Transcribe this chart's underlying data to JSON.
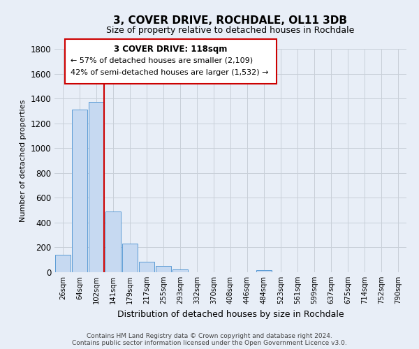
{
  "title": "3, COVER DRIVE, ROCHDALE, OL11 3DB",
  "subtitle": "Size of property relative to detached houses in Rochdale",
  "xlabel": "Distribution of detached houses by size in Rochdale",
  "ylabel": "Number of detached properties",
  "bar_labels": [
    "26sqm",
    "64sqm",
    "102sqm",
    "141sqm",
    "179sqm",
    "217sqm",
    "255sqm",
    "293sqm",
    "332sqm",
    "370sqm",
    "408sqm",
    "446sqm",
    "484sqm",
    "523sqm",
    "561sqm",
    "599sqm",
    "637sqm",
    "675sqm",
    "714sqm",
    "752sqm",
    "790sqm"
  ],
  "bar_values": [
    140,
    1310,
    1370,
    490,
    230,
    85,
    50,
    25,
    0,
    0,
    0,
    0,
    15,
    0,
    0,
    0,
    0,
    0,
    0,
    0,
    0
  ],
  "bar_color": "#c6d9f1",
  "bar_edge_color": "#5b9bd5",
  "annotation_title": "3 COVER DRIVE: 118sqm",
  "annotation_line1": "← 57% of detached houses are smaller (2,109)",
  "annotation_line2": "42% of semi-detached houses are larger (1,532) →",
  "ylim": [
    0,
    1800
  ],
  "yticks": [
    0,
    200,
    400,
    600,
    800,
    1000,
    1200,
    1400,
    1600,
    1800
  ],
  "background_color": "#e8eef7",
  "footer1": "Contains HM Land Registry data © Crown copyright and database right 2024.",
  "footer2": "Contains public sector information licensed under the Open Government Licence v3.0.",
  "box_color": "#ffffff",
  "box_border_color": "#cc0000",
  "red_line_color": "#cc0000",
  "grid_color": "#c8cfd8",
  "title_fontsize": 11,
  "subtitle_fontsize": 9,
  "ylabel_fontsize": 8,
  "xlabel_fontsize": 9
}
